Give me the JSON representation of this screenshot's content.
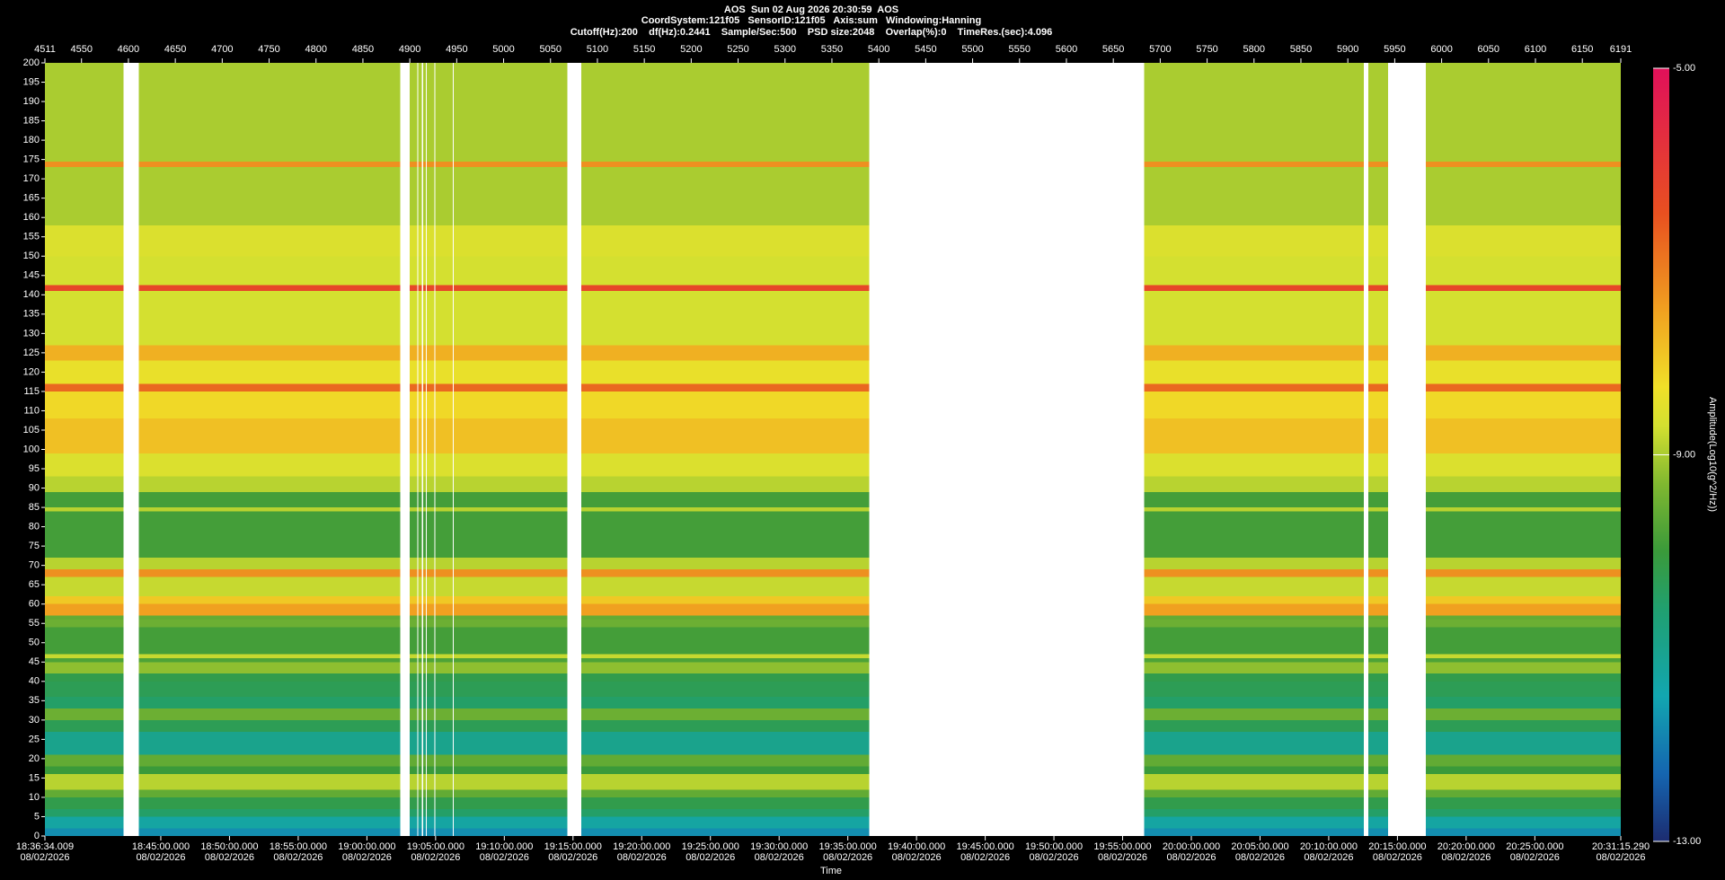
{
  "chart_data": {
    "type": "spectrogram",
    "title": "AOS  Sun 02 Aug 2026 20:30:59  AOS",
    "subtitles": [
      "CoordSystem:121f05   SensorID:121f05   Axis:sum   Windowing:Hanning",
      "Cutoff(Hz):200    df(Hz):0.2441    Sample/Sec:500    PSD size:2048    Overlap(%):0    TimeRes.(sec):4.096"
    ],
    "x_label": "Time",
    "colorbar_label": "Amplitude(Log10(g^2/Hz))",
    "xlim": [
      4511,
      6191
    ],
    "xticks": [
      4511,
      4550,
      4600,
      4650,
      4700,
      4750,
      4800,
      4850,
      4900,
      4950,
      5000,
      5050,
      5100,
      5150,
      5200,
      5250,
      5300,
      5350,
      5400,
      5450,
      5500,
      5550,
      5600,
      5650,
      5700,
      5750,
      5800,
      5850,
      5900,
      5950,
      6000,
      6050,
      6100,
      6150,
      6191
    ],
    "time_lim": [
      "18:36:34.009",
      "20:31:15.290"
    ],
    "time_ticks": [
      {
        "time": "18:36:34.009",
        "date": "08/02/2026"
      },
      {
        "time": "18:45:00.000",
        "date": "08/02/2026"
      },
      {
        "time": "18:50:00.000",
        "date": "08/02/2026"
      },
      {
        "time": "18:55:00.000",
        "date": "08/02/2026"
      },
      {
        "time": "19:00:00.000",
        "date": "08/02/2026"
      },
      {
        "time": "19:05:00.000",
        "date": "08/02/2026"
      },
      {
        "time": "19:10:00.000",
        "date": "08/02/2026"
      },
      {
        "time": "19:15:00.000",
        "date": "08/02/2026"
      },
      {
        "time": "19:20:00.000",
        "date": "08/02/2026"
      },
      {
        "time": "19:25:00.000",
        "date": "08/02/2026"
      },
      {
        "time": "19:30:00.000",
        "date": "08/02/2026"
      },
      {
        "time": "19:35:00.000",
        "date": "08/02/2026"
      },
      {
        "time": "19:40:00.000",
        "date": "08/02/2026"
      },
      {
        "time": "19:45:00.000",
        "date": "08/02/2026"
      },
      {
        "time": "19:50:00.000",
        "date": "08/02/2026"
      },
      {
        "time": "19:55:00.000",
        "date": "08/02/2026"
      },
      {
        "time": "20:00:00.000",
        "date": "08/02/2026"
      },
      {
        "time": "20:05:00.000",
        "date": "08/02/2026"
      },
      {
        "time": "20:10:00.000",
        "date": "08/02/2026"
      },
      {
        "time": "20:15:00.000",
        "date": "08/02/2026"
      },
      {
        "time": "20:20:00.000",
        "date": "08/02/2026"
      },
      {
        "time": "20:25:00.000",
        "date": "08/02/2026"
      },
      {
        "time": "20:31:15.290",
        "date": "08/02/2026"
      }
    ],
    "ylim": [
      0,
      200
    ],
    "yticks": [
      0,
      5,
      10,
      15,
      20,
      25,
      30,
      35,
      40,
      45,
      50,
      55,
      60,
      65,
      70,
      75,
      80,
      85,
      90,
      95,
      100,
      105,
      110,
      115,
      120,
      125,
      130,
      135,
      140,
      145,
      150,
      155,
      160,
      165,
      170,
      175,
      180,
      185,
      190,
      195,
      200
    ],
    "y_bins": [
      0,
      2,
      5,
      7,
      10,
      12,
      16,
      18,
      21,
      27,
      30,
      33,
      36,
      40,
      42,
      45,
      46,
      47,
      54,
      56,
      57,
      60,
      62,
      67,
      69,
      72,
      84,
      85,
      89,
      93,
      99,
      108,
      115,
      117,
      123,
      127,
      141,
      142.5,
      150,
      158,
      173,
      174.5,
      200
    ],
    "z": [
      -11.8,
      -11.3,
      -10.5,
      -10.2,
      -9.6,
      -8.9,
      -10.0,
      -9.6,
      -11.0,
      -10.3,
      -9.5,
      -10.5,
      -10.3,
      -10.2,
      -9.2,
      -9.8,
      -8.8,
      -9.9,
      -9.5,
      -9.6,
      -7.5,
      -8.0,
      -8.8,
      -7.3,
      -8.9,
      -9.9,
      -8.9,
      -9.9,
      -8.9,
      -8.6,
      -7.9,
      -8.2,
      -6.8,
      -8.4,
      -7.7,
      -8.7,
      -6.3,
      -8.7,
      -8.6,
      -9.0,
      -7.3,
      -9.0
    ],
    "gaps": [
      [
        4595,
        4611
      ],
      [
        4890,
        4900
      ],
      [
        4908,
        4909
      ],
      [
        4913,
        4914
      ],
      [
        4917,
        4918
      ],
      [
        4926,
        4927
      ],
      [
        4946,
        4947
      ],
      [
        5068,
        5083
      ],
      [
        5390,
        5683
      ],
      [
        5917,
        5922
      ],
      [
        5943,
        5983
      ]
    ],
    "clim": [
      -13,
      -5
    ],
    "cticks": [
      {
        "value": -5,
        "label": "-5.00"
      },
      {
        "value": -9,
        "label": "-9.00"
      },
      {
        "value": -13,
        "label": "-13.00"
      }
    ],
    "colormap": [
      [
        -13,
        "#1c2c70"
      ],
      [
        -12.3,
        "#1565b0"
      ],
      [
        -11.5,
        "#12a6b0"
      ],
      [
        -10.6,
        "#20a070"
      ],
      [
        -10,
        "#3a9a3a"
      ],
      [
        -9.3,
        "#80b830"
      ],
      [
        -8.7,
        "#d4e030"
      ],
      [
        -8.3,
        "#f0e028"
      ],
      [
        -7.5,
        "#f0a020"
      ],
      [
        -6.5,
        "#e85020"
      ],
      [
        -5,
        "#e0105a"
      ]
    ]
  }
}
